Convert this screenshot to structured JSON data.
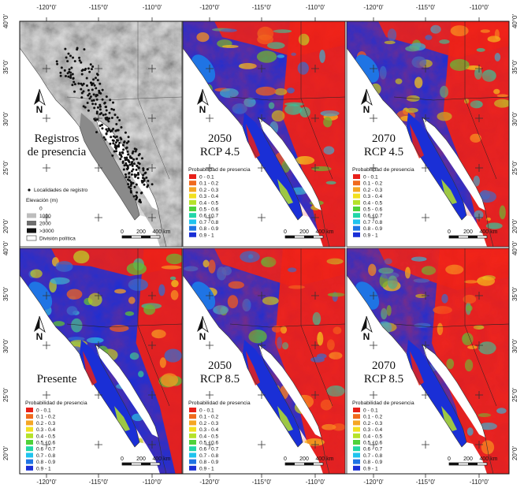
{
  "figure": {
    "top_ticks": [
      "-120°0'",
      "-115°0'",
      "-110°0'"
    ],
    "bottom_ticks": [
      "-120°0'",
      "-115°0'",
      "-110°0'"
    ],
    "left_ticks": [
      "40°0'",
      "35°0'",
      "30°0'",
      "25°0'",
      "20°0'"
    ],
    "right_ticks": [
      "40°0'",
      "35°0'",
      "30°0'",
      "25°0'",
      "20°0'"
    ],
    "scalebar": {
      "labels": [
        "0",
        "200",
        "400 km"
      ]
    },
    "north_label": "N"
  },
  "panels": [
    {
      "id": "registros",
      "type": "relief",
      "title_lines": [
        "Registros",
        "de presencia"
      ]
    },
    {
      "id": "2050-rcp45",
      "type": "probability",
      "title_lines": [
        "2050",
        "RCP 4.5"
      ],
      "bias": 0.0
    },
    {
      "id": "2070-rcp45",
      "type": "probability",
      "title_lines": [
        "2070",
        "RCP 4.5"
      ],
      "bias": 0.02
    },
    {
      "id": "presente",
      "type": "probability",
      "title_lines": [
        "Presente"
      ],
      "bias": -0.12
    },
    {
      "id": "2050-rcp85",
      "type": "probability",
      "title_lines": [
        "2050",
        "RCP 8.5"
      ],
      "bias": 0.05
    },
    {
      "id": "2070-rcp85",
      "type": "probability",
      "title_lines": [
        "2070",
        "RCP 8.5"
      ],
      "bias": 0.1
    }
  ],
  "legend_probability": {
    "title": "Probabilidad de presencia",
    "classes": [
      {
        "label": "0 - 0.1",
        "color": "#e8201a"
      },
      {
        "label": "0.1 - 0.2",
        "color": "#f06a1e"
      },
      {
        "label": "0.2 - 0.3",
        "color": "#f5a623"
      },
      {
        "label": "0.3 - 0.4",
        "color": "#f2e01f"
      },
      {
        "label": "0.4 - 0.5",
        "color": "#b5e22a"
      },
      {
        "label": "0.5 - 0.6",
        "color": "#4fd23a"
      },
      {
        "label": "0.6 - 0.7",
        "color": "#21d6a8"
      },
      {
        "label": "0.7 - 0.8",
        "color": "#1fc3ee"
      },
      {
        "label": "0.8 - 0.9",
        "color": "#1f74e4"
      },
      {
        "label": "0.9 - 1",
        "color": "#1a2fd6"
      }
    ]
  },
  "legend_relief": {
    "points_label": "Localidades de registro",
    "elevation_title": "Elevación (m)",
    "elevation_classes": [
      {
        "label": "0",
        "color": "#ffffff"
      },
      {
        "label": "1000",
        "color": "#bdbdbd"
      },
      {
        "label": "2000",
        "color": "#6e6e6e"
      },
      {
        "label": ">3000",
        "color": "#111111"
      }
    ],
    "political_label": "División política"
  }
}
